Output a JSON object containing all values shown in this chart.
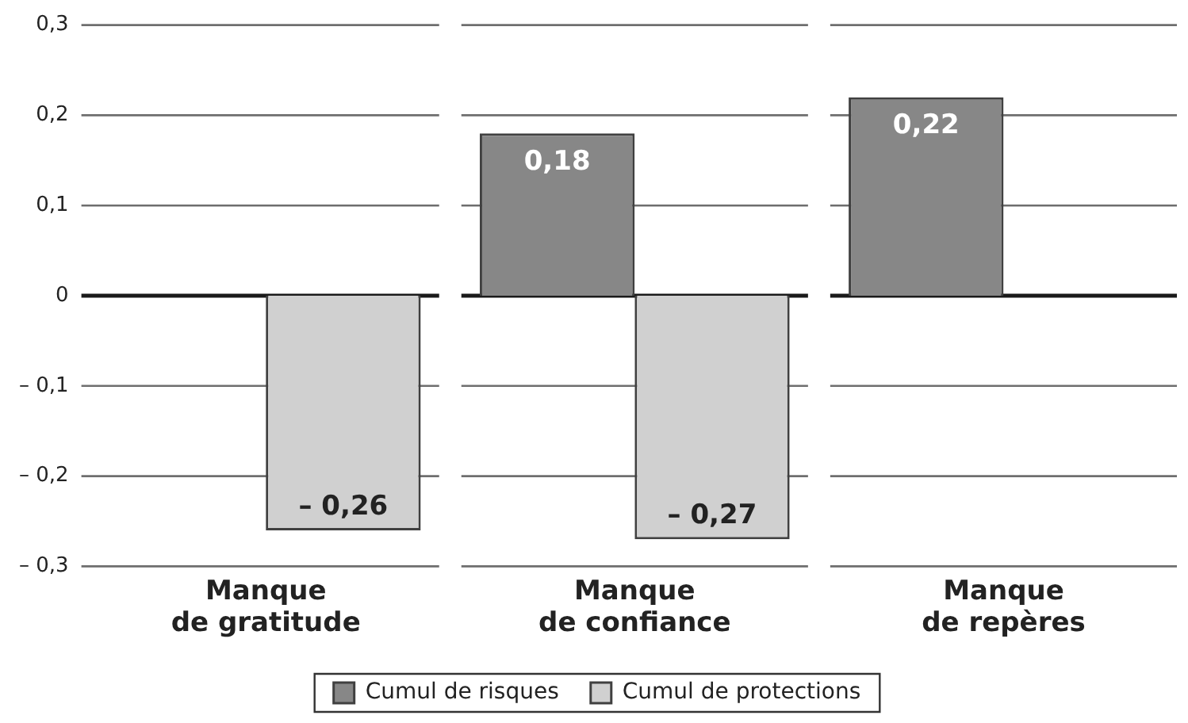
{
  "chart_data": {
    "type": "bar",
    "categories": [
      "Manque\nde gratitude",
      "Manque\nde confiance",
      "Manque\nde repères"
    ],
    "series": [
      {
        "name": "Cumul de risques",
        "color": "#878787",
        "values": [
          null,
          0.18,
          0.22
        ],
        "value_labels": [
          null,
          "0,18",
          "0,22"
        ]
      },
      {
        "name": "Cumul de protections",
        "color": "#d0d0d0",
        "values": [
          -0.26,
          -0.27,
          null
        ],
        "value_labels": [
          "– 0,26",
          "– 0,27",
          null
        ]
      }
    ],
    "ylim": [
      -0.3,
      0.3
    ],
    "yticks": [
      {
        "value": -0.3,
        "label": "– 0,3"
      },
      {
        "value": -0.2,
        "label": "– 0,2"
      },
      {
        "value": -0.1,
        "label": "– 0,1"
      },
      0,
      {
        "value": 0.1,
        "label": "0,1"
      },
      {
        "value": 0.2,
        "label": "0,2"
      },
      {
        "value": 0.3,
        "label": "0,3"
      }
    ],
    "grid": "y",
    "legend": "bottom"
  }
}
